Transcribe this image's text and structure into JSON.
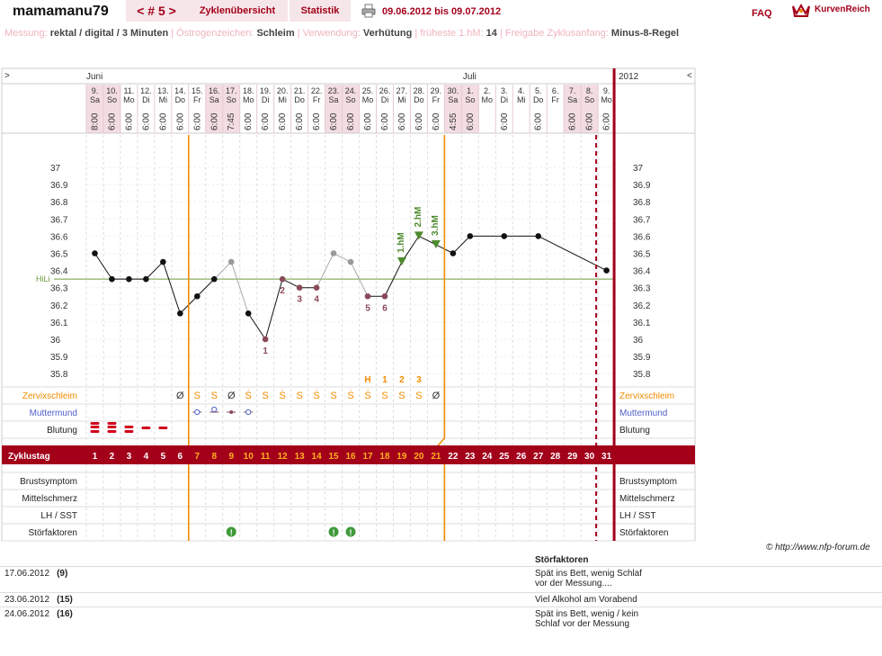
{
  "header": {
    "username": "mamamanu79",
    "cycle_label": "< # 5 >",
    "overview": "Zyklenübersicht",
    "statistics": "Statistik",
    "date_range": "09.06.2012 bis 09.07.2012",
    "faq": "FAQ",
    "logo_text": "KurvenReich"
  },
  "meta": {
    "measure_label": "Messung:",
    "measure_value": "rektal / digital / 3 Minuten",
    "estrogen_label": "Östrogenzeichen:",
    "estrogen_value": "Schleim",
    "use_label": "Verwendung:",
    "use_value": "Verhütung",
    "earliest_label": "früheste 1.hM:",
    "earliest_value": "14",
    "release_label": "Freigabe Zyklusanfang:",
    "release_value": "Minus-8-Regel"
  },
  "colors": {
    "brand": "#a3001a",
    "orange": "#f08c00",
    "green": "#4e8a2e",
    "hili": "#6e9a3f",
    "blue": "#5060c8"
  },
  "chart_data": {
    "type": "line",
    "months": {
      "start": "Juni",
      "mid": "Juli",
      "year": "2012"
    },
    "nav_left": ">",
    "nav_right": "<",
    "dates": [
      "9.",
      "10.",
      "11.",
      "12.",
      "13.",
      "14.",
      "15.",
      "16.",
      "17.",
      "18.",
      "19.",
      "20.",
      "21.",
      "22.",
      "23.",
      "24.",
      "25.",
      "26.",
      "27.",
      "28.",
      "29.",
      "30.",
      "1.",
      "2.",
      "3.",
      "4.",
      "5.",
      "6.",
      "7.",
      "8.",
      "9."
    ],
    "weekdays": [
      "Sa",
      "So",
      "Mo",
      "Di",
      "Mi",
      "Do",
      "Fr",
      "Sa",
      "So",
      "Mo",
      "Di",
      "Mi",
      "Do",
      "Fr",
      "Sa",
      "So",
      "Mo",
      "Di",
      "Mi",
      "Do",
      "Fr",
      "Sa",
      "So",
      "Mo",
      "Di",
      "Mi",
      "Do",
      "Fr",
      "Sa",
      "So",
      "Mo"
    ],
    "times": [
      "8:00",
      "6:00",
      "6:00",
      "6:00",
      "6:00",
      "6:00",
      "6:00",
      "6:00",
      "7:45",
      "6:00",
      "6:00",
      "6:00",
      "6:00",
      "6:00",
      "6:00",
      "6:00",
      "6:00",
      "6:00",
      "6:00",
      "6:00",
      "6:00",
      "4:55",
      "6:00",
      "",
      "6:00",
      "",
      "6:00",
      "",
      "6:00",
      "6:00",
      "6:00"
    ],
    "weekend": [
      1,
      1,
      0,
      0,
      0,
      0,
      0,
      1,
      1,
      0,
      0,
      0,
      0,
      0,
      1,
      1,
      0,
      0,
      0,
      0,
      0,
      1,
      1,
      0,
      0,
      0,
      0,
      0,
      1,
      1,
      0
    ],
    "temps": [
      36.5,
      36.35,
      36.35,
      36.35,
      36.45,
      36.15,
      36.25,
      36.35,
      36.45,
      36.15,
      36.0,
      36.35,
      36.3,
      36.3,
      36.5,
      36.45,
      36.25,
      36.25,
      36.45,
      36.6,
      36.55,
      36.5,
      36.6,
      null,
      36.6,
      null,
      36.6,
      null,
      null,
      null,
      36.4
    ],
    "excluded": [
      0,
      0,
      0,
      0,
      0,
      0,
      0,
      0,
      1,
      0,
      0,
      0,
      0,
      0,
      1,
      1,
      0,
      0,
      0,
      0,
      0,
      0,
      0,
      0,
      0,
      0,
      0,
      0,
      0,
      0,
      0
    ],
    "ylim": [
      35.7,
      37.05
    ],
    "yticks": [
      "37",
      "36.9",
      "36.8",
      "36.7",
      "36.6",
      "36.5",
      "36.4",
      "36.3",
      "36.2",
      "36.1",
      "36",
      "35.9",
      "35.8"
    ],
    "hili": {
      "label": "HiLi",
      "value": 36.35
    },
    "low_labels": [
      {
        "day": 11,
        "text": "1"
      },
      {
        "day": 12,
        "text": "2"
      },
      {
        "day": 13,
        "text": "3"
      },
      {
        "day": 14,
        "text": "4"
      },
      {
        "day": 17,
        "text": "5"
      },
      {
        "day": 18,
        "text": "6"
      }
    ],
    "high_labels": [
      {
        "day": 19,
        "text": "1.hM"
      },
      {
        "day": 20,
        "text": "2.hM"
      },
      {
        "day": 21,
        "text": "3.hM"
      }
    ],
    "mucus_label": "Zervixschleim",
    "mucus": [
      "",
      "",
      "",
      "",
      "",
      "Ø",
      "S",
      "S",
      "Ø",
      "Ṡ",
      "S",
      "Ṡ",
      "S",
      "Ṡ",
      "S",
      "Ṡ",
      "Ṡ",
      "S",
      "S",
      "S",
      "Ø",
      "",
      "",
      "",
      "",
      "",
      "",
      "",
      "",
      "",
      ""
    ],
    "peak_marks": [
      {
        "day": 17,
        "text": "H"
      },
      {
        "day": 18,
        "text": "1"
      },
      {
        "day": 19,
        "text": "2"
      },
      {
        "day": 20,
        "text": "3"
      }
    ],
    "cervix_label": "Muttermund",
    "cervix": [
      "",
      "",
      "",
      "",
      "",
      "",
      "o",
      "ô",
      "•",
      "o",
      "",
      "",
      "",
      "",
      "",
      "",
      "",
      "",
      "",
      "",
      "",
      "",
      "",
      "",
      "",
      "",
      "",
      "",
      "",
      "",
      ""
    ],
    "bleeding_label": "Blutung",
    "bleeding": [
      3,
      3,
      2,
      1,
      1,
      0,
      0,
      0,
      0,
      0,
      0,
      0,
      0,
      0,
      0,
      0,
      0,
      0,
      0,
      0,
      0,
      0,
      0,
      0,
      0,
      0,
      0,
      0,
      0,
      0,
      0
    ],
    "cycle_label": "Zyklustag",
    "cycle_days": [
      "1",
      "2",
      "3",
      "4",
      "5",
      "6",
      "7",
      "8",
      "9",
      "10",
      "11",
      "12",
      "13",
      "14",
      "15",
      "16",
      "17",
      "18",
      "19",
      "20",
      "21",
      "22",
      "23",
      "24",
      "25",
      "26",
      "27",
      "28",
      "29",
      "30",
      "31"
    ],
    "fertile_days": [
      7,
      21
    ],
    "breast_label": "Brustsymptom",
    "midpain_label": "Mittelschmerz",
    "lh_label": "LH / SST",
    "disturb_label": "Störfaktoren",
    "disturb_days": [
      9,
      15,
      16
    ],
    "disturb_icon": "!"
  },
  "copyright": "© http://www.nfp-forum.de",
  "notes": {
    "header": "Störfaktoren",
    "rows": [
      {
        "date": "17.06.2012",
        "day": "(9)",
        "text": "Spät ins Bett, wenig Schlaf vor der Messung...."
      },
      {
        "date": "23.06.2012",
        "day": "(15)",
        "text": "Viel Alkohol am Vorabend"
      },
      {
        "date": "24.06.2012",
        "day": "(16)",
        "text": "Spät ins Bett, wenig / kein Schlaf vor der Messung"
      }
    ]
  }
}
